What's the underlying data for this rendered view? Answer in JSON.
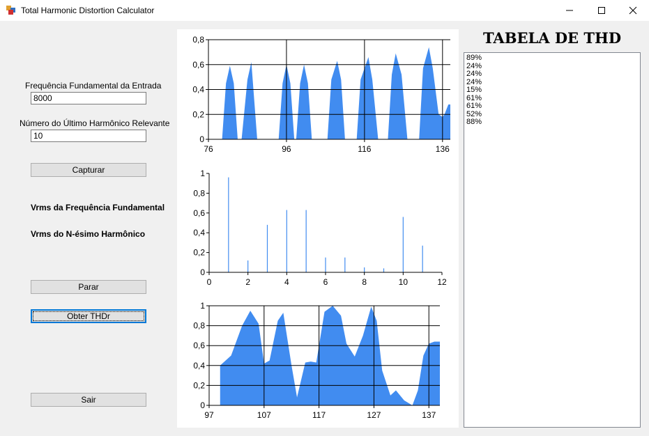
{
  "window": {
    "title": "Total Harmonic Distortion Calculator",
    "controls": {
      "minimize": "—",
      "maximize": "☐",
      "close": "✕"
    }
  },
  "form": {
    "freq_label": "Frequência Fundamental da Entrada",
    "freq_value": "8000",
    "harmonic_label": "Número do Último Harmônico Relevante",
    "harmonic_value": "10",
    "capture_button": "Capturar",
    "vrms_fundamental_label": "Vrms da Frequência Fundamental",
    "vrms_nth_label": "Vrms do N-ésimo Harmônico",
    "stop_button": "Parar",
    "get_thd_button": "Obter THDr",
    "exit_button": "Sair"
  },
  "thd_table": {
    "title": "TABELA DE THD",
    "items": [
      "89%",
      "24%",
      "24%",
      "24%",
      "15%",
      "61%",
      "61%",
      "52%",
      "88%"
    ]
  },
  "colors": {
    "series": "#418cf0",
    "grid": "#000000"
  },
  "chart_data": [
    {
      "type": "area",
      "xlim": [
        76,
        138
      ],
      "ylim": [
        0,
        0.8
      ],
      "x_ticks": [
        "76",
        "96",
        "116",
        "136"
      ],
      "y_ticks": [
        "0",
        "0,2",
        "0,4",
        "0,6",
        "0,8"
      ],
      "grid": true,
      "x": [
        79.5,
        80.5,
        81.5,
        82.5,
        83.5,
        84.5,
        86.0,
        87.0,
        88.5,
        90.0,
        91.0,
        94.0,
        95.0,
        96.0,
        97.0,
        98.0,
        98.5,
        99.5,
        100.5,
        101.5,
        102.5,
        103.5,
        104.0,
        106.5,
        107.5,
        109.0,
        110.0,
        111.0,
        112.0,
        114.0,
        115.0,
        117.0,
        118.0,
        119.5,
        121.0,
        122.0,
        123.0,
        124.0,
        125.5,
        127.0,
        128.0,
        130.0,
        131.0,
        132.5,
        133.5,
        135.0,
        136.0,
        136.5,
        137.5,
        138.0
      ],
      "y": [
        0.0,
        0.45,
        0.59,
        0.45,
        0.0,
        0.0,
        0.48,
        0.62,
        0.0,
        0.0,
        0.0,
        0.0,
        0.45,
        0.6,
        0.45,
        0.0,
        0.0,
        0.45,
        0.6,
        0.45,
        0.0,
        0.0,
        0.0,
        0.0,
        0.48,
        0.63,
        0.48,
        0.0,
        0.0,
        0.0,
        0.48,
        0.66,
        0.48,
        0.0,
        0.0,
        0.0,
        0.52,
        0.69,
        0.52,
        0.0,
        0.0,
        0.0,
        0.57,
        0.74,
        0.57,
        0.2,
        0.18,
        0.2,
        0.28,
        0.28
      ]
    },
    {
      "type": "bar",
      "xlim": [
        0,
        12
      ],
      "ylim": [
        0,
        1
      ],
      "x_ticks": [
        "0",
        "2",
        "4",
        "6",
        "8",
        "10",
        "12"
      ],
      "y_ticks": [
        "0",
        "0,2",
        "0,4",
        "0,6",
        "0,8",
        "1"
      ],
      "grid": false,
      "x": [
        1,
        2,
        3,
        4,
        5,
        6,
        7,
        8,
        9,
        10,
        11
      ],
      "values": [
        0.96,
        0.12,
        0.48,
        0.63,
        0.63,
        0.15,
        0.15,
        0.05,
        0.04,
        0.56,
        0.27
      ]
    },
    {
      "type": "area",
      "xlim": [
        97,
        139
      ],
      "ylim": [
        0,
        1
      ],
      "x_ticks": [
        "97",
        "107",
        "117",
        "127",
        "137"
      ],
      "y_ticks": [
        "0",
        "0,2",
        "0,4",
        "0,6",
        "0,8",
        "1"
      ],
      "grid": true,
      "x": [
        99.0,
        101.0,
        103.0,
        104.5,
        106.0,
        107.0,
        108.0,
        109.5,
        110.5,
        112.0,
        113.0,
        114.5,
        115.5,
        116.5,
        118.0,
        119.5,
        121.0,
        122.0,
        123.5,
        125.0,
        126.5,
        127.5,
        128.5,
        130.0,
        131.0,
        132.5,
        134.0,
        135.0,
        136.0,
        137.0,
        138.0,
        139.0
      ],
      "y": [
        0.4,
        0.5,
        0.8,
        0.95,
        0.82,
        0.42,
        0.45,
        0.85,
        0.93,
        0.4,
        0.08,
        0.43,
        0.44,
        0.43,
        0.94,
        1.0,
        0.9,
        0.62,
        0.49,
        0.7,
        0.99,
        0.85,
        0.35,
        0.1,
        0.15,
        0.05,
        0.0,
        0.15,
        0.5,
        0.62,
        0.64,
        0.64
      ]
    }
  ]
}
